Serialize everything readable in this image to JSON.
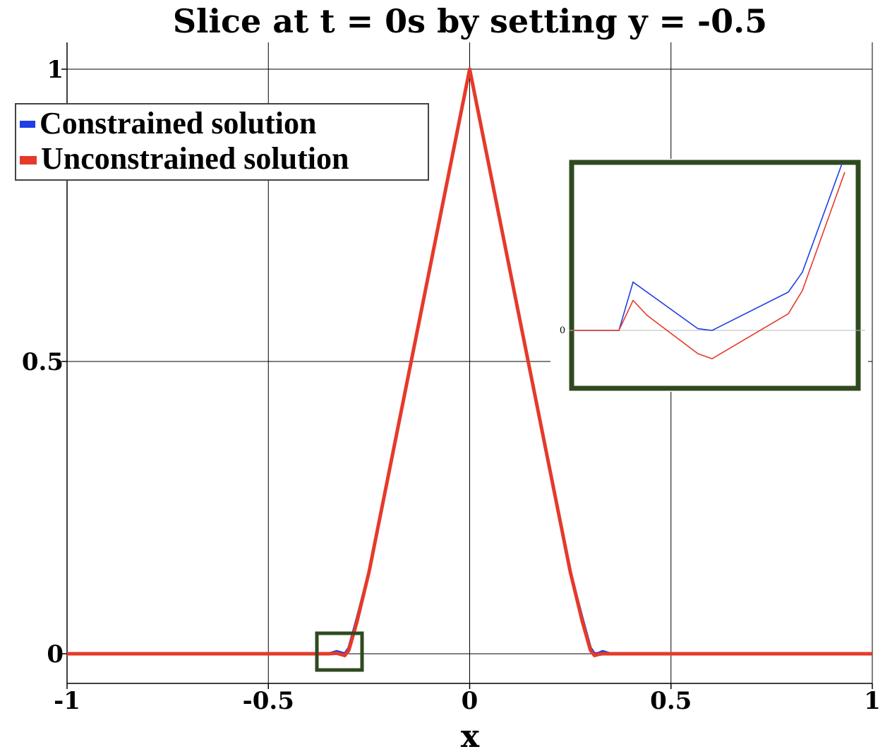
{
  "chart_data": {
    "type": "line",
    "title": "Slice at t = 0s by setting y = -0.5",
    "xlabel": "x",
    "ylabel": "",
    "xlim": [
      -1,
      1
    ],
    "ylim": [
      -0.05,
      1.05
    ],
    "xticks": [
      "-1",
      "-0.5",
      "0",
      "0.5",
      "1"
    ],
    "yticks": [
      "0",
      "0.5",
      "1"
    ],
    "grid": true,
    "legend_position": "top-left",
    "series": [
      {
        "name": "Constrained solution",
        "color": "#1f3ee6",
        "x": [
          -1,
          -0.35,
          -0.33,
          -0.31,
          -0.3,
          -0.28,
          -0.25,
          0,
          0.25,
          0.28,
          0.3,
          0.31,
          0.32,
          0.33,
          0.34,
          0.35,
          1
        ],
        "y": [
          0,
          0,
          0.004,
          0,
          0.01,
          0.06,
          0.14,
          1,
          0.14,
          0.06,
          0.01,
          0,
          0.001,
          0.004,
          0.002,
          0,
          0
        ]
      },
      {
        "name": "Unconstrained solution",
        "color": "#e53a2a",
        "x": [
          -1,
          -0.35,
          -0.33,
          -0.31,
          -0.3,
          -0.28,
          -0.25,
          0,
          0.25,
          0.28,
          0.3,
          0.31,
          0.32,
          0.33,
          0.34,
          0.35,
          1
        ],
        "y": [
          0,
          0,
          0.001,
          -0.003,
          0.006,
          0.055,
          0.14,
          1,
          0.14,
          0.055,
          0.006,
          -0.003,
          -0.001,
          0,
          0,
          0,
          0
        ]
      }
    ],
    "inset": {
      "ytick": "0",
      "constrained": [
        [
          0,
          0
        ],
        [
          0.16,
          0
        ],
        [
          0.21,
          0.29
        ],
        [
          0.44,
          0.01
        ],
        [
          0.49,
          0
        ],
        [
          0.76,
          0.23
        ],
        [
          0.81,
          0.35
        ],
        [
          0.95,
          1
        ]
      ],
      "unconstrained": [
        [
          0,
          0
        ],
        [
          0.16,
          0
        ],
        [
          0.21,
          0.18
        ],
        [
          0.26,
          0.09
        ],
        [
          0.44,
          -0.14
        ],
        [
          0.49,
          -0.17
        ],
        [
          0.76,
          0.1
        ],
        [
          0.81,
          0.24
        ],
        [
          0.96,
          0.95
        ]
      ]
    }
  }
}
